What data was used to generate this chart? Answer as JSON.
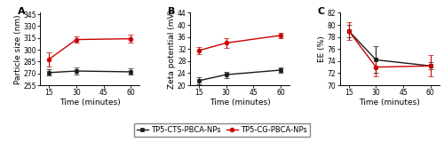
{
  "x": [
    15,
    30,
    60
  ],
  "panel_A": {
    "label": "A",
    "ylabel": "Particle size (nm)",
    "xlabel": "Time (minutes)",
    "ylim": [
      255,
      347
    ],
    "yticks": [
      255,
      270,
      285,
      300,
      315,
      330,
      345
    ],
    "xticks": [
      15,
      30,
      45,
      60
    ],
    "black_y": [
      271,
      273,
      272
    ],
    "black_yerr": [
      4,
      5,
      4
    ],
    "red_y": [
      288,
      313,
      314
    ],
    "red_yerr": [
      9,
      4,
      5
    ]
  },
  "panel_B": {
    "label": "B",
    "ylabel": "Zeta potential (mV)",
    "xlabel": "Time (minutes)",
    "ylim": [
      20,
      44
    ],
    "yticks": [
      20,
      24,
      28,
      32,
      36,
      40,
      44
    ],
    "xticks": [
      15,
      30,
      45,
      60
    ],
    "black_y": [
      21.5,
      23.5,
      25.0
    ],
    "black_yerr": [
      1.2,
      1.0,
      1.0
    ],
    "red_y": [
      31.5,
      34.0,
      36.5
    ],
    "red_yerr": [
      1.2,
      1.5,
      1.0
    ]
  },
  "panel_C": {
    "label": "C",
    "ylabel": "EE (%)",
    "xlabel": "Time (minutes)",
    "ylim": [
      70,
      82
    ],
    "yticks": [
      70,
      72,
      74,
      76,
      78,
      80,
      82
    ],
    "xticks": [
      15,
      30,
      45,
      60
    ],
    "black_y": [
      79.0,
      74.2,
      73.2
    ],
    "black_yerr": [
      1.0,
      2.2,
      0.6
    ],
    "red_y": [
      79.0,
      73.0,
      73.2
    ],
    "red_yerr": [
      1.5,
      1.5,
      1.8
    ]
  },
  "legend_labels": [
    "TP5-CTS-PBCA-NPs",
    "TP5-CG-PBCA-NPs"
  ],
  "black_color": "#1a1a1a",
  "red_color": "#cc0000",
  "marker_black": "s",
  "marker_red": "o",
  "markersize": 3.5,
  "linewidth": 1.0,
  "capsize": 2,
  "elinewidth": 0.8,
  "font_size_label": 6.5,
  "font_size_tick": 5.5,
  "font_size_panel": 8,
  "font_size_legend": 6.0
}
